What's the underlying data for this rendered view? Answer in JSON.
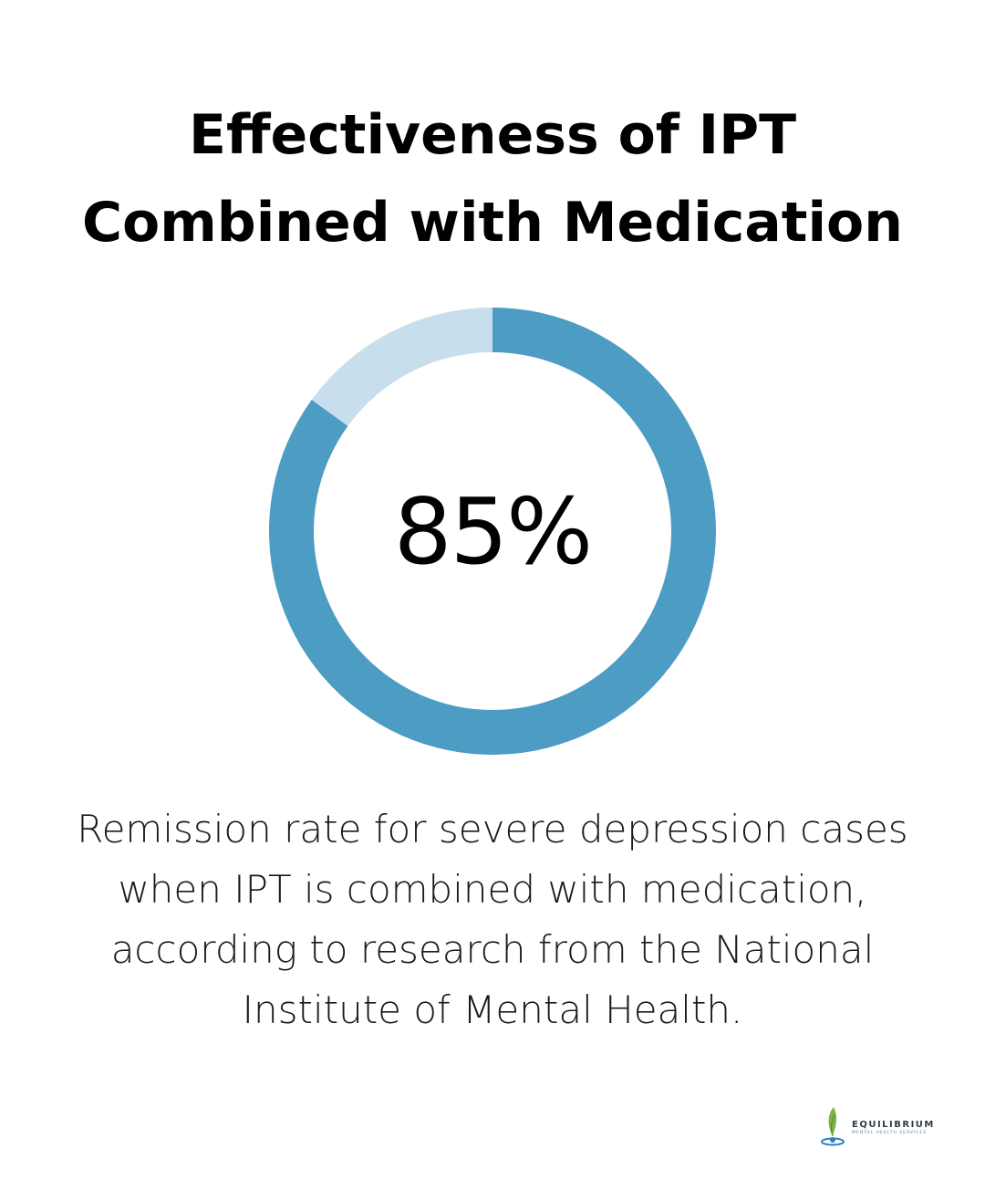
{
  "title_line1": "Effectiveness of IPT",
  "title_line2": "Combined with Medication",
  "chart_data": {
    "type": "pie",
    "values": [
      85,
      15
    ],
    "center_label": "85%",
    "colors": {
      "primary": "#4d9cc3",
      "remainder": "#c7dfec"
    }
  },
  "description_lines": [
    "Remission rate for severe depression cases",
    "when IPT is combined with medication,",
    "according to research from the National",
    "Institute of Mental Health."
  ],
  "logo": {
    "name": "EQUILIBRIUM",
    "subtitle": "MENTAL HEALTH SERVICES",
    "icon": "leaf-drop-icon"
  }
}
